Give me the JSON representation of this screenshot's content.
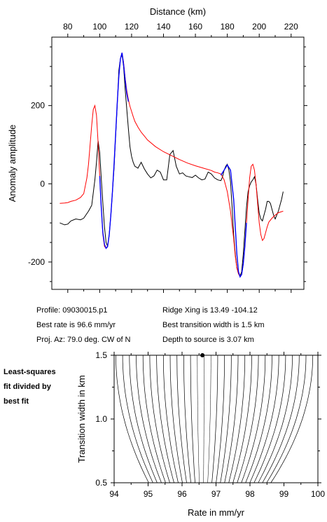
{
  "info": {
    "profile": "Profile: 09030015.p1",
    "ridge": "Ridge Xing is 13.49 -104.12",
    "rate": "Best rate is 96.6 mm/yr",
    "width": "Best transition width is 1.5 km",
    "azimuth": "Proj. Az: 79.0 deg. CW of N",
    "depth": "Depth to source is   3.07 km"
  },
  "note": [
    "Least-squares",
    "fit divided by",
    "best fit"
  ],
  "colors": {
    "observed": "#000000",
    "model": "#ff0000",
    "fit": "#0000ff",
    "axis": "#000000"
  },
  "chart_data": [
    {
      "type": "line",
      "xlabel": "Distance (km)",
      "ylabel": "Anomaly amplitude",
      "xlim": [
        70,
        228
      ],
      "ylim": [
        -270,
        375
      ],
      "xticks": [
        80,
        100,
        120,
        140,
        160,
        180,
        200,
        220
      ],
      "yticks": [
        -200,
        0,
        200
      ],
      "series": [
        {
          "kind": "observed",
          "color": "#000000",
          "x": [
            75,
            78,
            80,
            82,
            85,
            88,
            90,
            93,
            95,
            97,
            98,
            99,
            100,
            101,
            102,
            103,
            104,
            105,
            106,
            107,
            108,
            109,
            110,
            111,
            112,
            113,
            114,
            115,
            116,
            117,
            118,
            119,
            120,
            121,
            122,
            124,
            126,
            128,
            130,
            132,
            134,
            136,
            138,
            140,
            142,
            144,
            146,
            148,
            150,
            152,
            154,
            156,
            158,
            160,
            162,
            164,
            166,
            168,
            170,
            172,
            174,
            176,
            177,
            178,
            179,
            180,
            181,
            182,
            183,
            184,
            185,
            186,
            187,
            188,
            189,
            190,
            191,
            192,
            193,
            194,
            195,
            196,
            197,
            198,
            199,
            200,
            201,
            202,
            203,
            204,
            205,
            206,
            207,
            208,
            209,
            210,
            212,
            214,
            215
          ],
          "y": [
            -100,
            -105,
            -103,
            -95,
            -90,
            -92,
            -88,
            -70,
            -55,
            10,
            55,
            110,
            80,
            15,
            -50,
            -110,
            -150,
            -160,
            -130,
            -80,
            -20,
            40,
            120,
            200,
            290,
            320,
            330,
            300,
            240,
            190,
            140,
            95,
            70,
            55,
            45,
            40,
            55,
            38,
            25,
            15,
            20,
            35,
            30,
            10,
            10,
            75,
            85,
            45,
            25,
            28,
            20,
            18,
            16,
            22,
            15,
            10,
            12,
            30,
            25,
            15,
            10,
            8,
            18,
            35,
            45,
            50,
            35,
            5,
            -60,
            -130,
            -180,
            -215,
            -230,
            -235,
            -225,
            -180,
            -120,
            -60,
            -20,
            -5,
            5,
            10,
            18,
            0,
            -40,
            -75,
            -90,
            -95,
            -80,
            -65,
            -45,
            -45,
            -50,
            -65,
            -80,
            -90,
            -70,
            -40,
            -20
          ]
        },
        {
          "kind": "model",
          "color": "#ff0000",
          "x": [
            75,
            78,
            80,
            82,
            85,
            88,
            90,
            92,
            93,
            94,
            95,
            96,
            97,
            98,
            99,
            100,
            101,
            102,
            103,
            104,
            105,
            106,
            107,
            108,
            109,
            110,
            111,
            112,
            113,
            114,
            115,
            116,
            117,
            118,
            119,
            120,
            121,
            122,
            124,
            126,
            128,
            130,
            135,
            140,
            145,
            150,
            155,
            160,
            165,
            170,
            172,
            174,
            176,
            178,
            180,
            182,
            184,
            185,
            186,
            187,
            188,
            189,
            190,
            191,
            192,
            193,
            194,
            195,
            196,
            197,
            198,
            199,
            200,
            201,
            202,
            203,
            204,
            205,
            206,
            208,
            210,
            212,
            215
          ],
          "y": [
            -50,
            -49,
            -48,
            -45,
            -42,
            -35,
            -25,
            15,
            50,
            100,
            150,
            190,
            200,
            175,
            105,
            20,
            -60,
            -130,
            -160,
            -165,
            -160,
            -130,
            -80,
            -20,
            50,
            125,
            205,
            275,
            320,
            335,
            310,
            270,
            238,
            215,
            198,
            185,
            172,
            160,
            145,
            132,
            122,
            112,
            95,
            82,
            72,
            62,
            53,
            46,
            40,
            34,
            30,
            28,
            25,
            10,
            -20,
            -70,
            -140,
            -185,
            -215,
            -230,
            -238,
            -232,
            -205,
            -160,
            -100,
            -40,
            15,
            45,
            50,
            35,
            0,
            -50,
            -100,
            -130,
            -145,
            -140,
            -125,
            -110,
            -98,
            -88,
            -80,
            -74,
            -70
          ]
        },
        {
          "kind": "fit",
          "color": "#0000ff",
          "x": [
            100,
            101,
            102,
            103,
            104,
            105,
            106,
            107,
            108,
            109,
            110,
            111,
            112,
            113,
            114,
            115,
            116,
            117,
            118
          ],
          "y": [
            20,
            -60,
            -125,
            -155,
            -165,
            -160,
            -130,
            -80,
            -20,
            50,
            125,
            205,
            275,
            320,
            335,
            305,
            265,
            230,
            210
          ]
        },
        {
          "kind": "fit",
          "color": "#0000ff",
          "x": [
            176,
            178,
            180,
            182,
            184,
            185,
            186,
            187,
            188,
            189,
            190,
            191,
            192
          ],
          "y": [
            22,
            35,
            48,
            35,
            -40,
            -110,
            -180,
            -225,
            -238,
            -232,
            -205,
            -160,
            -100
          ]
        }
      ]
    },
    {
      "type": "contour",
      "xlabel": "Rate in mm/yr",
      "ylabel": "Transition width in km",
      "xlim": [
        94,
        100
      ],
      "ylim": [
        0.5,
        1.5
      ],
      "xticks": [
        94,
        95,
        96,
        97,
        98,
        99,
        100
      ],
      "yticks": [
        0.5,
        1.0,
        1.5
      ],
      "best": {
        "rate": 96.6,
        "width": 1.5
      }
    }
  ]
}
